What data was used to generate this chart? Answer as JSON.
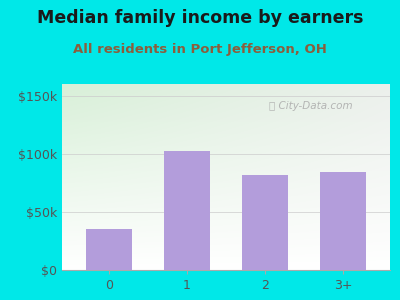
{
  "categories": [
    "0",
    "1",
    "2",
    "3+"
  ],
  "values": [
    35000,
    102000,
    82000,
    84000
  ],
  "bar_color": "#b39ddb",
  "title": "Median family income by earners",
  "subtitle": "All residents in Port Jefferson, OH",
  "title_color": "#1a1a1a",
  "subtitle_color": "#8b5e3c",
  "outer_bg": "#00e8e8",
  "yticks": [
    0,
    50000,
    100000,
    150000
  ],
  "ytick_labels": [
    "$0",
    "$50k",
    "$100k",
    "$150k"
  ],
  "ylim": [
    0,
    160000
  ],
  "watermark": "City-Data.com",
  "title_fontsize": 12.5,
  "subtitle_fontsize": 9.5,
  "tick_color": "#555555",
  "tick_fontsize": 9
}
